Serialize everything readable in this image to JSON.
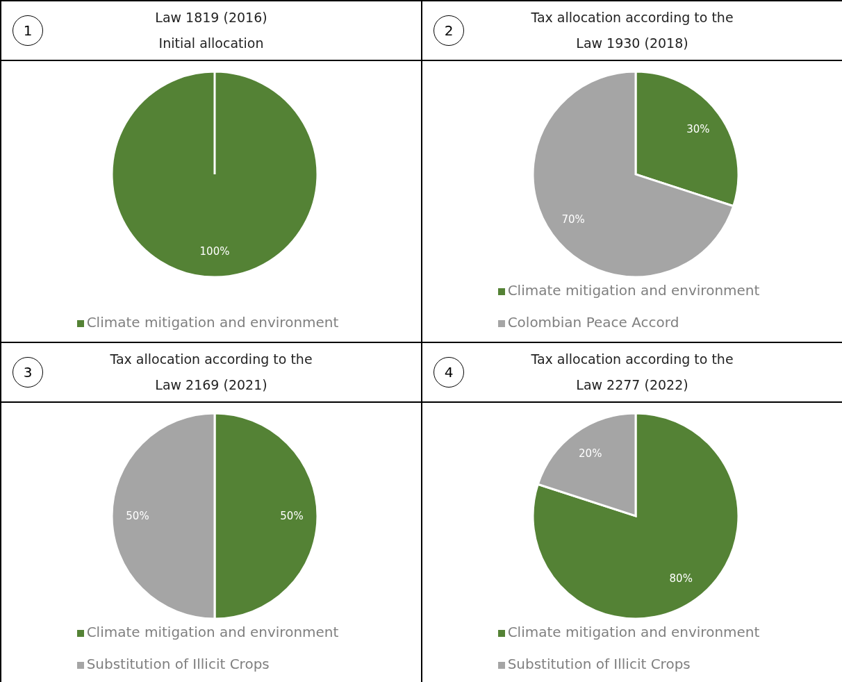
{
  "chart_data": [
    {
      "type": "pie",
      "title": "Law 1819 (2016)",
      "subtitle": "Initial allocation",
      "annotations": [
        "1"
      ],
      "categories": [
        "Climate mitigation and environment"
      ],
      "values": [
        100
      ],
      "colors": [
        "#548235"
      ],
      "value_labels": [
        "100%"
      ],
      "legend": "bottom"
    },
    {
      "type": "pie",
      "title": "Tax allocation according to the Law 1930 (2018)",
      "annotations": [
        "2"
      ],
      "categories": [
        "Climate mitigation and environment",
        "Colombian Peace Accord"
      ],
      "values": [
        30,
        70
      ],
      "colors": [
        "#548235",
        "#a5a5a5"
      ],
      "value_labels": [
        "30%",
        "70%"
      ],
      "legend": "bottom"
    },
    {
      "type": "pie",
      "title": "Tax allocation according to the Law 2169 (2021)",
      "annotations": [
        "3"
      ],
      "categories": [
        "Climate mitigation and environment",
        "Substitution of Illicit Crops"
      ],
      "values": [
        50,
        50
      ],
      "colors": [
        "#548235",
        "#a5a5a5"
      ],
      "value_labels": [
        "50%",
        "50%"
      ],
      "legend": "bottom"
    },
    {
      "type": "pie",
      "title": "Tax allocation according to the Law 2277 (2022)",
      "annotations": [
        "4"
      ],
      "categories": [
        "Climate mitigation and environment",
        "Substitution of Illicit Crops"
      ],
      "values": [
        80,
        20
      ],
      "colors": [
        "#548235",
        "#a5a5a5"
      ],
      "value_labels": [
        "80%",
        "20%"
      ],
      "legend": "bottom"
    }
  ]
}
